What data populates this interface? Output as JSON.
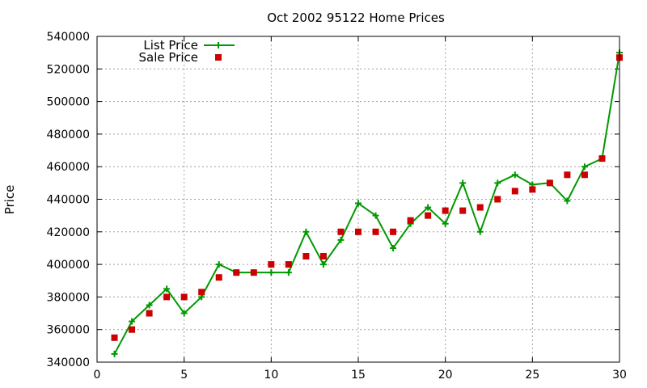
{
  "chart_data": {
    "type": "line",
    "title": "Oct 2002 95122 Home Prices",
    "xlabel": "",
    "ylabel": "Price",
    "xlim": [
      0,
      30
    ],
    "ylim": [
      340000,
      540000
    ],
    "x_ticks": [
      "0",
      "5",
      "10",
      "15",
      "20",
      "25",
      "30"
    ],
    "y_ticks": [
      "340000",
      "360000",
      "380000",
      "400000",
      "420000",
      "440000",
      "460000",
      "480000",
      "500000",
      "520000",
      "540000"
    ],
    "grid": true,
    "legend_position": "top-left",
    "x": [
      1,
      2,
      3,
      4,
      5,
      6,
      7,
      8,
      9,
      10,
      11,
      12,
      13,
      14,
      15,
      16,
      17,
      18,
      19,
      20,
      21,
      22,
      23,
      24,
      25,
      26,
      27,
      28,
      29,
      30
    ],
    "series": [
      {
        "name": "List Price",
        "style": "line-points",
        "color": "#009900",
        "values": [
          345000,
          365000,
          375000,
          385000,
          370000,
          380000,
          400000,
          395000,
          395000,
          395000,
          395000,
          420000,
          400000,
          415000,
          437500,
          430000,
          410000,
          425000,
          435000,
          425000,
          450000,
          420000,
          450000,
          455000,
          449000,
          450000,
          439000,
          460000,
          465000,
          530000
        ]
      },
      {
        "name": "Sale Price",
        "style": "points",
        "color": "#cc0000",
        "values": [
          355000,
          360000,
          370000,
          380000,
          380000,
          383000,
          392000,
          395000,
          395000,
          400000,
          400000,
          405000,
          405000,
          420000,
          420000,
          420000,
          420000,
          427000,
          430000,
          433000,
          433000,
          435000,
          440000,
          445000,
          446000,
          450000,
          455000,
          455000,
          465000,
          527000
        ]
      }
    ]
  }
}
